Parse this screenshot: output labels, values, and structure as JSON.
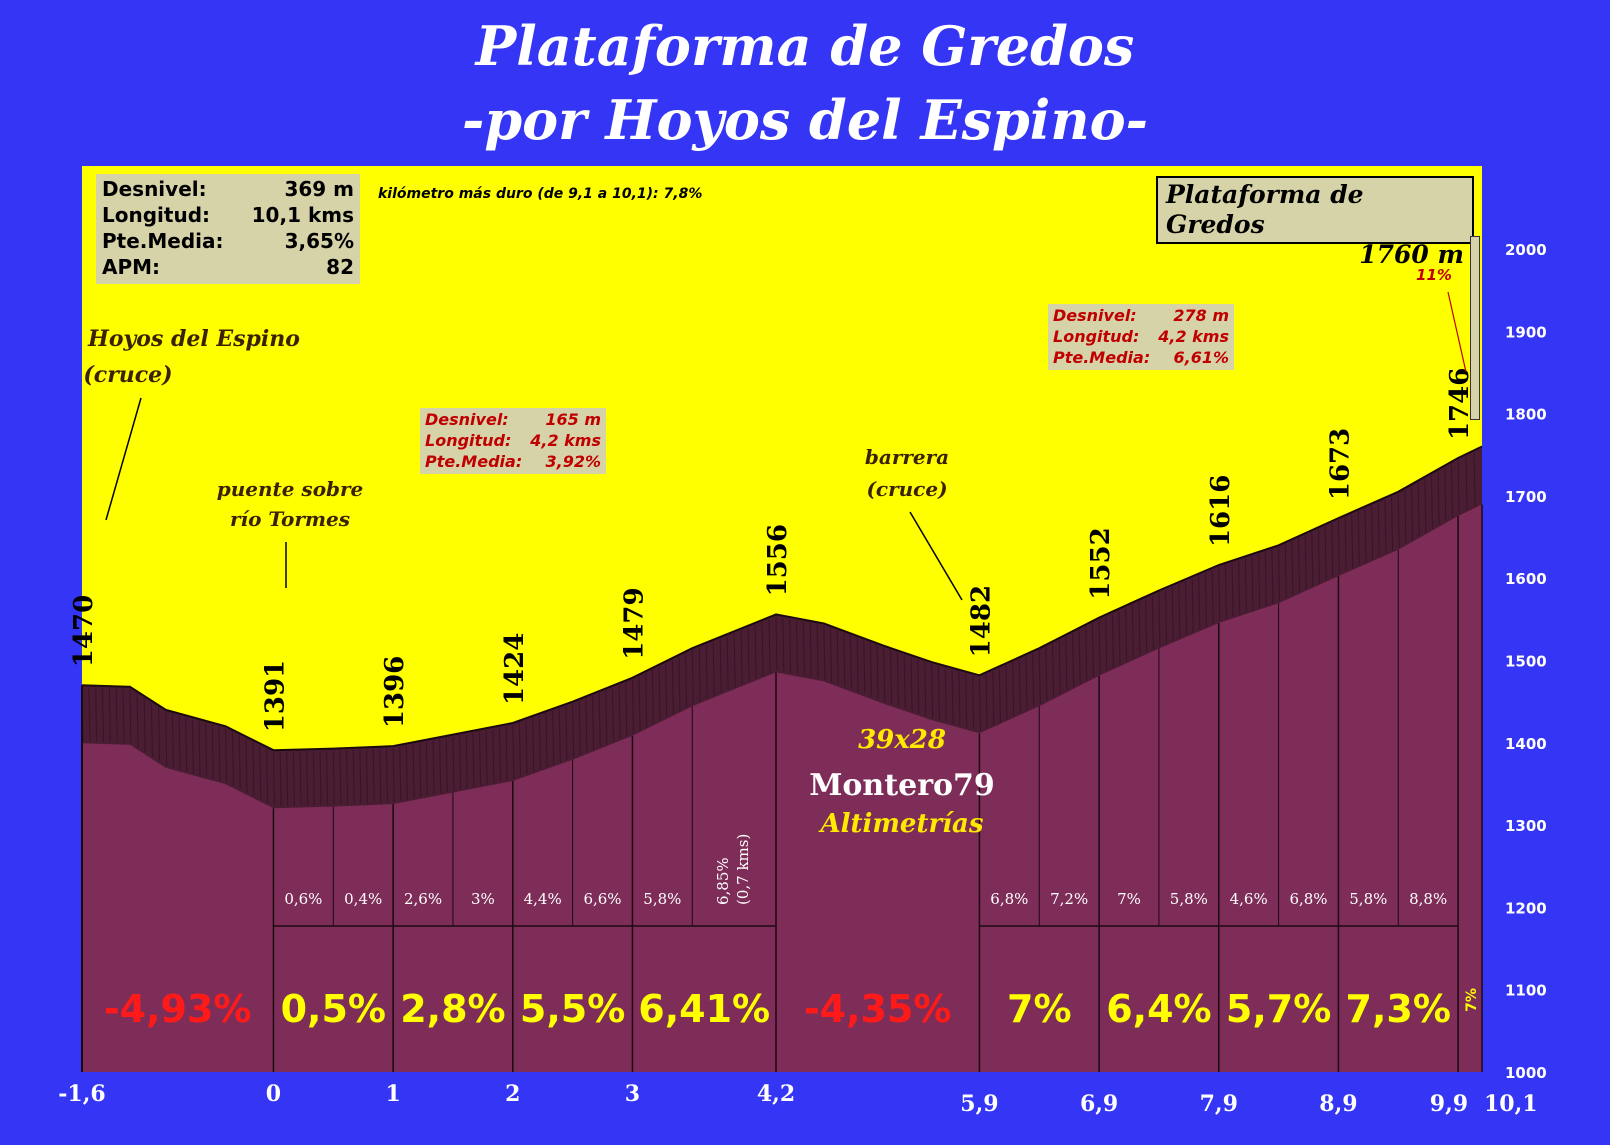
{
  "title_line1": "Plataforma de Gredos",
  "title_line2": "-por Hoyos del Espino-",
  "summary": [
    {
      "label": "Desnivel:",
      "value": "369 m"
    },
    {
      "label": "Longitud:",
      "value": "10,1 kms"
    },
    {
      "label": "Pte.Media:",
      "value": "3,65%"
    },
    {
      "label": "APM:",
      "value": "82"
    }
  ],
  "hardest_km": "kilómetro más duro (de 9,1 a 10,1):  7,8%",
  "summit": {
    "name": "Plataforma de Gredos",
    "altitude": "1760 m"
  },
  "section1": [
    {
      "label": "Desnivel:",
      "value": "165 m"
    },
    {
      "label": "Longitud:",
      "value": "4,2 kms"
    },
    {
      "label": "Pte.Media:",
      "value": "3,92%"
    }
  ],
  "section2": [
    {
      "label": "Desnivel:",
      "value": "278 m"
    },
    {
      "label": "Longitud:",
      "value": "4,2 kms"
    },
    {
      "label": "Pte.Media:",
      "value": "6,61%"
    }
  ],
  "places": {
    "start_line1": "Hoyos del Espino",
    "start_line2": "(cruce)",
    "bridge_line1": "puente sobre",
    "bridge_line2": "río Tormes",
    "barrier_line1": "barrera",
    "barrier_line2": "(cruce)"
  },
  "last_grade": "11%",
  "credit": {
    "gear": "39x28",
    "author": "Montero79",
    "site": "Altimetrías"
  },
  "chart_data": {
    "type": "area",
    "x": [
      -1.6,
      -1.2,
      -0.9,
      -0.4,
      0,
      0.5,
      1,
      1.5,
      2,
      2.5,
      3,
      3.5,
      4.2,
      4.6,
      5.1,
      5.5,
      5.9,
      6.4,
      6.9,
      7.4,
      7.9,
      8.4,
      8.9,
      9.4,
      9.9,
      10.1
    ],
    "y": [
      1470,
      1468,
      1440,
      1420,
      1391,
      1393,
      1396,
      1410,
      1424,
      1450,
      1479,
      1515,
      1556,
      1545,
      1518,
      1498,
      1482,
      1515,
      1552,
      1585,
      1616,
      1640,
      1673,
      1705,
      1746,
      1760
    ],
    "ylim": [
      1000,
      2100
    ],
    "xlim": [
      -1.6,
      10.1
    ],
    "yticks": [
      "1000",
      "1100",
      "1200",
      "1300",
      "1400",
      "1500",
      "1600",
      "1700",
      "1800",
      "1900",
      "2000"
    ],
    "xticks": [
      {
        "x": -1.6,
        "label": "-1,6",
        "row": 0
      },
      {
        "x": 0,
        "label": "0",
        "row": 0
      },
      {
        "x": 1,
        "label": "1",
        "row": 0
      },
      {
        "x": 2,
        "label": "2",
        "row": 0
      },
      {
        "x": 3,
        "label": "3",
        "row": 0
      },
      {
        "x": 4.2,
        "label": "4,2",
        "row": 0
      },
      {
        "x": 5.9,
        "label": "5,9",
        "row": 1
      },
      {
        "x": 6.9,
        "label": "6,9",
        "row": 1
      },
      {
        "x": 7.9,
        "label": "7,9",
        "row": 1
      },
      {
        "x": 8.9,
        "label": "8,9",
        "row": 1
      },
      {
        "x": 9.9,
        "label": "9,9",
        "row": 1
      },
      {
        "x": 10.1,
        "label": "10,1",
        "row": 1
      }
    ],
    "altitude_labels": [
      {
        "x": -1.6,
        "label": "1470"
      },
      {
        "x": 0,
        "label": "1391"
      },
      {
        "x": 1,
        "label": "1396"
      },
      {
        "x": 2,
        "label": "1424"
      },
      {
        "x": 3,
        "label": "1479"
      },
      {
        "x": 4.2,
        "label": "1556"
      },
      {
        "x": 5.9,
        "label": "1482"
      },
      {
        "x": 6.9,
        "label": "1552"
      },
      {
        "x": 7.9,
        "label": "1616"
      },
      {
        "x": 8.9,
        "label": "1673"
      },
      {
        "x": 9.9,
        "label": "1746"
      }
    ],
    "grade_labels_small": [
      {
        "x": 0.25,
        "label": "0,6%"
      },
      {
        "x": 0.75,
        "label": "0,4%"
      },
      {
        "x": 1.25,
        "label": "2,6%"
      },
      {
        "x": 1.75,
        "label": "3%"
      },
      {
        "x": 2.25,
        "label": "4,4%"
      },
      {
        "x": 2.75,
        "label": "6,6%"
      },
      {
        "x": 3.25,
        "label": "5,8%"
      },
      {
        "x": 6.15,
        "label": "6,8%"
      },
      {
        "x": 6.65,
        "label": "7,2%"
      },
      {
        "x": 7.15,
        "label": "7%"
      },
      {
        "x": 7.65,
        "label": "5,8%"
      },
      {
        "x": 8.15,
        "label": "4,6%"
      },
      {
        "x": 8.65,
        "label": "6,8%"
      },
      {
        "x": 9.15,
        "label": "5,8%"
      },
      {
        "x": 9.65,
        "label": "8,8%"
      }
    ],
    "grade_label_vertical": {
      "x": 3.85,
      "line1": "6,85%",
      "line2": "(0,7 kms)"
    },
    "grade_labels_big": [
      {
        "x": -0.8,
        "label": "-4,93%",
        "color": "#ff1a1a"
      },
      {
        "x": 0.5,
        "label": "0,5%",
        "color": "#ffff00"
      },
      {
        "x": 1.5,
        "label": "2,8%",
        "color": "#ffff00"
      },
      {
        "x": 2.5,
        "label": "5,5%",
        "color": "#ffff00"
      },
      {
        "x": 3.6,
        "label": "6,41%",
        "color": "#ffff00"
      },
      {
        "x": 5.05,
        "label": "-4,35%",
        "color": "#ff1a1a"
      },
      {
        "x": 6.4,
        "label": "7%",
        "color": "#ffff00"
      },
      {
        "x": 7.4,
        "label": "6,4%",
        "color": "#ffff00"
      },
      {
        "x": 8.4,
        "label": "5,7%",
        "color": "#ffff00"
      },
      {
        "x": 9.4,
        "label": "7,3%",
        "color": "#ffff00"
      }
    ],
    "last_big": "7%",
    "colors": {
      "sky": "#ffff00",
      "fill": "#7e2d58",
      "band": "#4a1d33",
      "background": "#3535f6",
      "up": "#ffff00",
      "down": "#ff1a1a"
    }
  }
}
